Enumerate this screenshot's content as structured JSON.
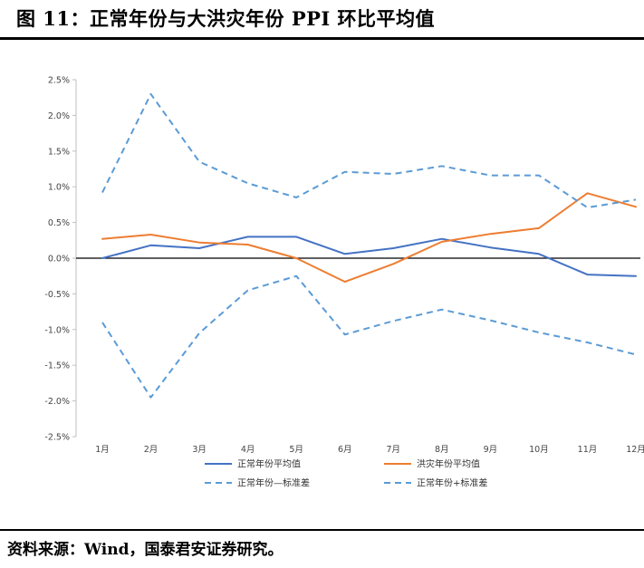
{
  "figure": {
    "title": "图 11：正常年份与大洪灾年份 PPI 环比平均值",
    "source": "资料来源：Wind，国泰君安证券研究。"
  },
  "chart_data": {
    "type": "line",
    "title": "",
    "xlabel": "",
    "ylabel": "",
    "categories": [
      "1月",
      "2月",
      "3月",
      "4月",
      "5月",
      "6月",
      "7月",
      "8月",
      "9月",
      "10月",
      "11月",
      "12月"
    ],
    "ylim": [
      -2.5,
      2.5
    ],
    "yticks": [
      2.5,
      2.0,
      1.5,
      1.0,
      0.5,
      0.0,
      -0.5,
      -1.0,
      -1.5,
      -2.0,
      -2.5
    ],
    "ytick_labels": [
      "2.5%",
      "2.0%",
      "1.5%",
      "1.0%",
      "0.5%",
      "0.0%",
      "-0.5%",
      "-1.0%",
      "-1.5%",
      "-2.0%",
      "-2.5%"
    ],
    "unit": "%",
    "grid": false,
    "legend_position": "bottom",
    "series": [
      {
        "name": "正常年份平均值",
        "color": "#4472C4",
        "dash": "solid",
        "values": [
          0.0,
          0.18,
          0.14,
          0.3,
          0.3,
          0.06,
          0.14,
          0.27,
          0.15,
          0.06,
          -0.23,
          -0.25
        ]
      },
      {
        "name": "洪灾年份平均值",
        "color": "#ED7D31",
        "dash": "solid",
        "values": [
          0.27,
          0.33,
          0.22,
          0.19,
          0.0,
          -0.33,
          -0.08,
          0.23,
          0.34,
          0.42,
          0.91,
          0.72
        ]
      },
      {
        "name": "正常年份—标准差",
        "color": "#5B9BD5",
        "dash": "dashed",
        "values": [
          -0.9,
          -1.95,
          -1.05,
          -0.45,
          -0.25,
          -1.07,
          -0.88,
          -0.72,
          -0.87,
          -1.04,
          -1.18,
          -1.35
        ]
      },
      {
        "name": "正常年份+标准差",
        "color": "#5B9BD5",
        "dash": "dashed",
        "values": [
          0.92,
          2.3,
          1.35,
          1.05,
          0.85,
          1.21,
          1.18,
          1.29,
          1.16,
          1.16,
          0.71,
          0.82
        ]
      }
    ]
  }
}
